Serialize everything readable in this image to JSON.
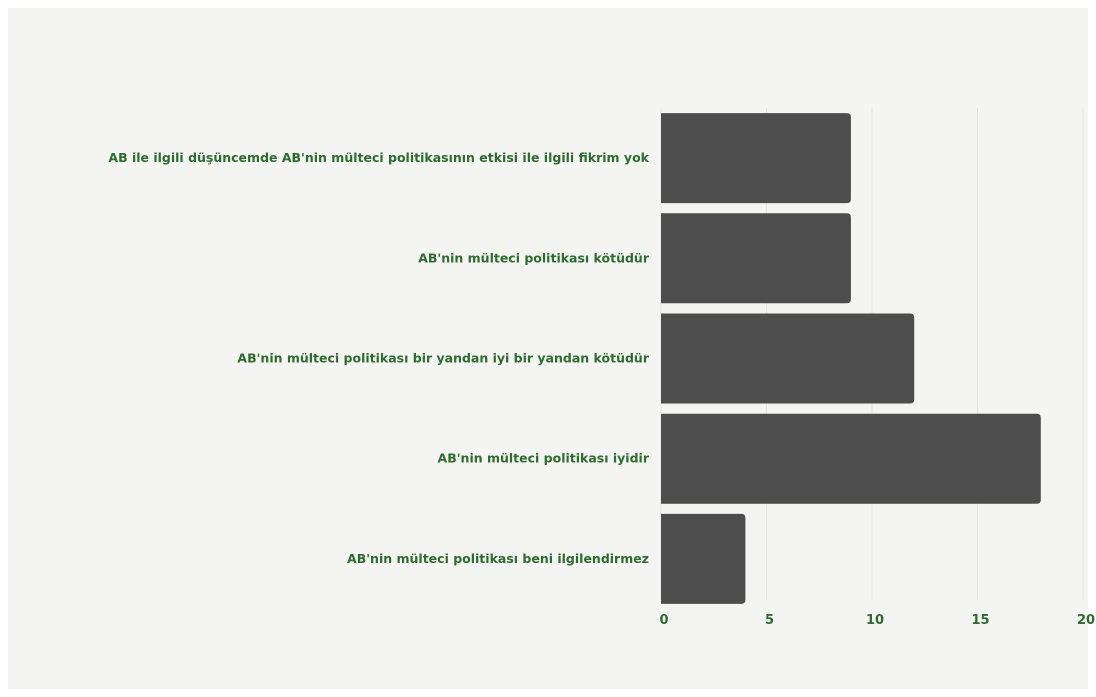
{
  "chart_data": {
    "type": "bar",
    "orientation": "horizontal",
    "categories": [
      "AB ile ilgili düşüncemde AB'nin mülteci politikasının etkisi ile ilgili fikrim yok",
      "AB'nin mülteci politikası kötüdür",
      "AB'nin mülteci politikası bir yandan iyi bir yandan kötüdür",
      "AB'nin mülteci politikası iyidir",
      "AB'nin mülteci politikası beni ilgilendirmez"
    ],
    "values": [
      9,
      9,
      12,
      18,
      4
    ],
    "xlim": [
      0,
      20
    ],
    "xticks": [
      "0",
      "5",
      "10",
      "15",
      "20"
    ],
    "title": "",
    "xlabel": "",
    "ylabel": "",
    "grid": true,
    "legend": "none",
    "colors": {
      "bar": "#4d4d4d",
      "label": "#2f6b2f",
      "grid": "#e4e4e2",
      "background": "#f4f4f3"
    }
  }
}
